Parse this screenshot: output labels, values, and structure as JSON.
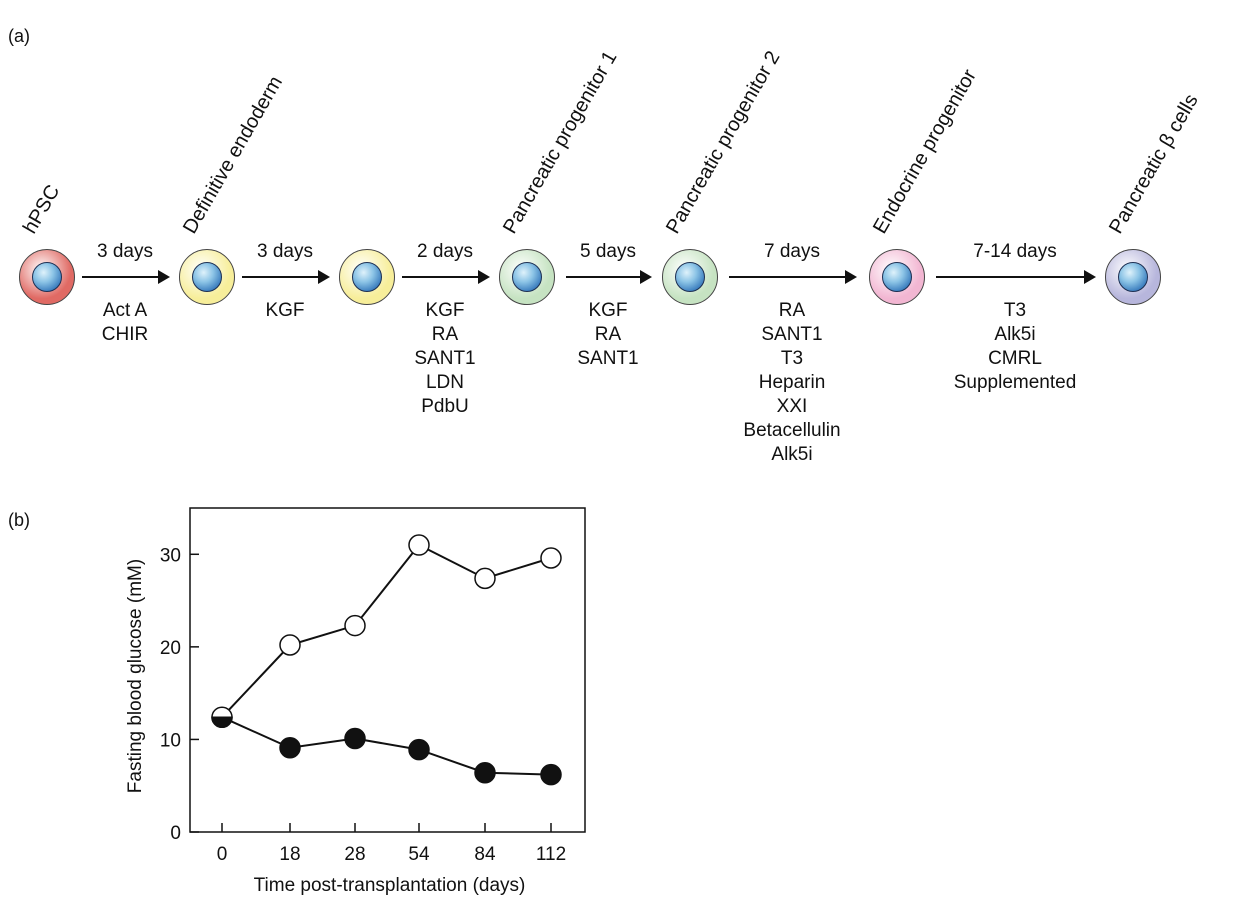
{
  "panel_a": {
    "label": "(a)",
    "stages": [
      {
        "name": "hPSC",
        "color": "#e06a64"
      },
      {
        "name": "Definitive endoderm",
        "color": "#f7ee9a"
      },
      {
        "name": "",
        "color": "#f7ee9a"
      },
      {
        "name": "Pancreatic progenitor 1",
        "color": "#c6e3c2"
      },
      {
        "name": "Pancreatic progenitor 2",
        "color": "#c6e3c2"
      },
      {
        "name": "Endocrine progenitor",
        "color": "#f2b6d2"
      },
      {
        "name": "Pancreatic β cells",
        "color": "#b7b6dc"
      }
    ],
    "steps": [
      {
        "duration": "3 days",
        "factors": "Act A\nCHIR"
      },
      {
        "duration": "3 days",
        "factors": "KGF"
      },
      {
        "duration": "2 days",
        "factors": "KGF\nRA\nSANT1\nLDN\nPdbU"
      },
      {
        "duration": "5 days",
        "factors": "KGF\nRA\nSANT1"
      },
      {
        "duration": "7 days",
        "factors": "RA\nSANT1\nT3\nHeparin\nXXI\nBetacellulin\nAlk5i"
      },
      {
        "duration": "7-14 days",
        "factors": "T3\nAlk5i\nCMRL\nSupplemented"
      }
    ]
  },
  "panel_b": {
    "label": "(b)"
  },
  "chart_data": {
    "type": "line",
    "categories": [
      "0",
      "18",
      "28",
      "54",
      "84",
      "112"
    ],
    "series": [
      {
        "marker": "open-circle",
        "values": [
          12.4,
          20.2,
          22.3,
          31.0,
          27.4,
          29.6
        ]
      },
      {
        "marker": "filled-circle",
        "values": [
          12.4,
          9.1,
          10.1,
          8.9,
          6.4,
          6.2
        ]
      }
    ],
    "xlabel": "Time post-transplantation (days)",
    "ylabel": "Fasting blood glucose (mM)",
    "ylim": [
      0,
      35
    ],
    "yticks": [
      "0",
      "10",
      "20",
      "30"
    ]
  }
}
